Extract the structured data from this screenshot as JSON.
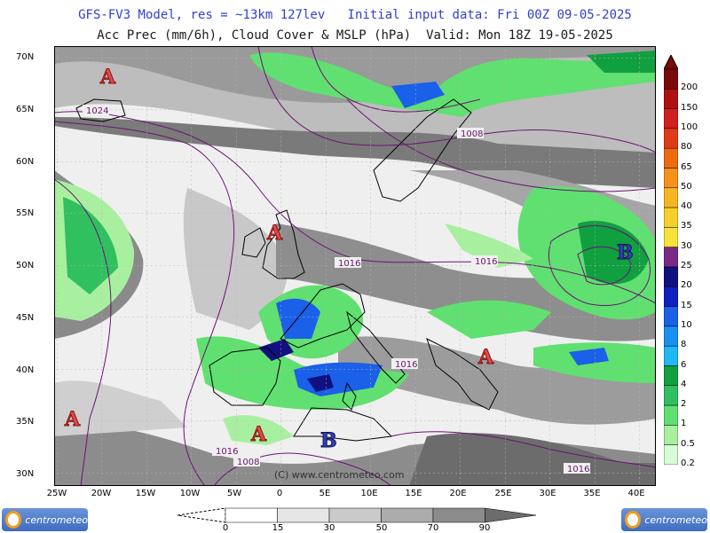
{
  "header": {
    "line1": "GFS-FV3 Model, res = ~13km 127lev   Initial input data: Fri 00Z 09-05-2025",
    "line2": "Acc Prec (mm/6h), Cloud Cover & MSLP (hPa)  Valid: Mon 18Z 19-05-2025"
  },
  "lat_labels": [
    "70N",
    "65N",
    "60N",
    "55N",
    "50N",
    "45N",
    "40N",
    "35N",
    "30N"
  ],
  "lon_labels": [
    "25W",
    "20W",
    "15W",
    "10W",
    "5W",
    "0",
    "5E",
    "10E",
    "15E",
    "20E",
    "25E",
    "30E",
    "35E",
    "40E"
  ],
  "precip_scale": {
    "labels": [
      "200",
      "150",
      "100",
      "80",
      "65",
      "50",
      "40",
      "35",
      "30",
      "25",
      "20",
      "15",
      "10",
      "8",
      "6",
      "4",
      "2",
      "1",
      "0.5",
      "0.2"
    ],
    "colors": [
      "#7a0a0a",
      "#b01010",
      "#d02020",
      "#e03a1a",
      "#ee6a10",
      "#f5901a",
      "#f7b520",
      "#f7cf2a",
      "#f7e23a",
      "#7a2a86",
      "#101080",
      "#1020c0",
      "#1a60e8",
      "#1a90f0",
      "#20b8f8",
      "#10a040",
      "#30c060",
      "#60e070",
      "#a8f0a0",
      "#d8fcd8"
    ]
  },
  "cloud_scale": {
    "labels": [
      "0",
      "15",
      "30",
      "50",
      "70",
      "90"
    ],
    "colors": [
      "#ffffff",
      "#e6e6e6",
      "#cacaca",
      "#acacac",
      "#8c8c8c",
      "#6c6c6c"
    ]
  },
  "pressure_labels": [
    "1024",
    "1008",
    "1016",
    "1016",
    "1016",
    "1016",
    "1008",
    "1016"
  ],
  "centers": {
    "high": "A",
    "low": "B"
  },
  "watermark": "(C) www.centrometeo.com",
  "logo_text": "centrometeo"
}
